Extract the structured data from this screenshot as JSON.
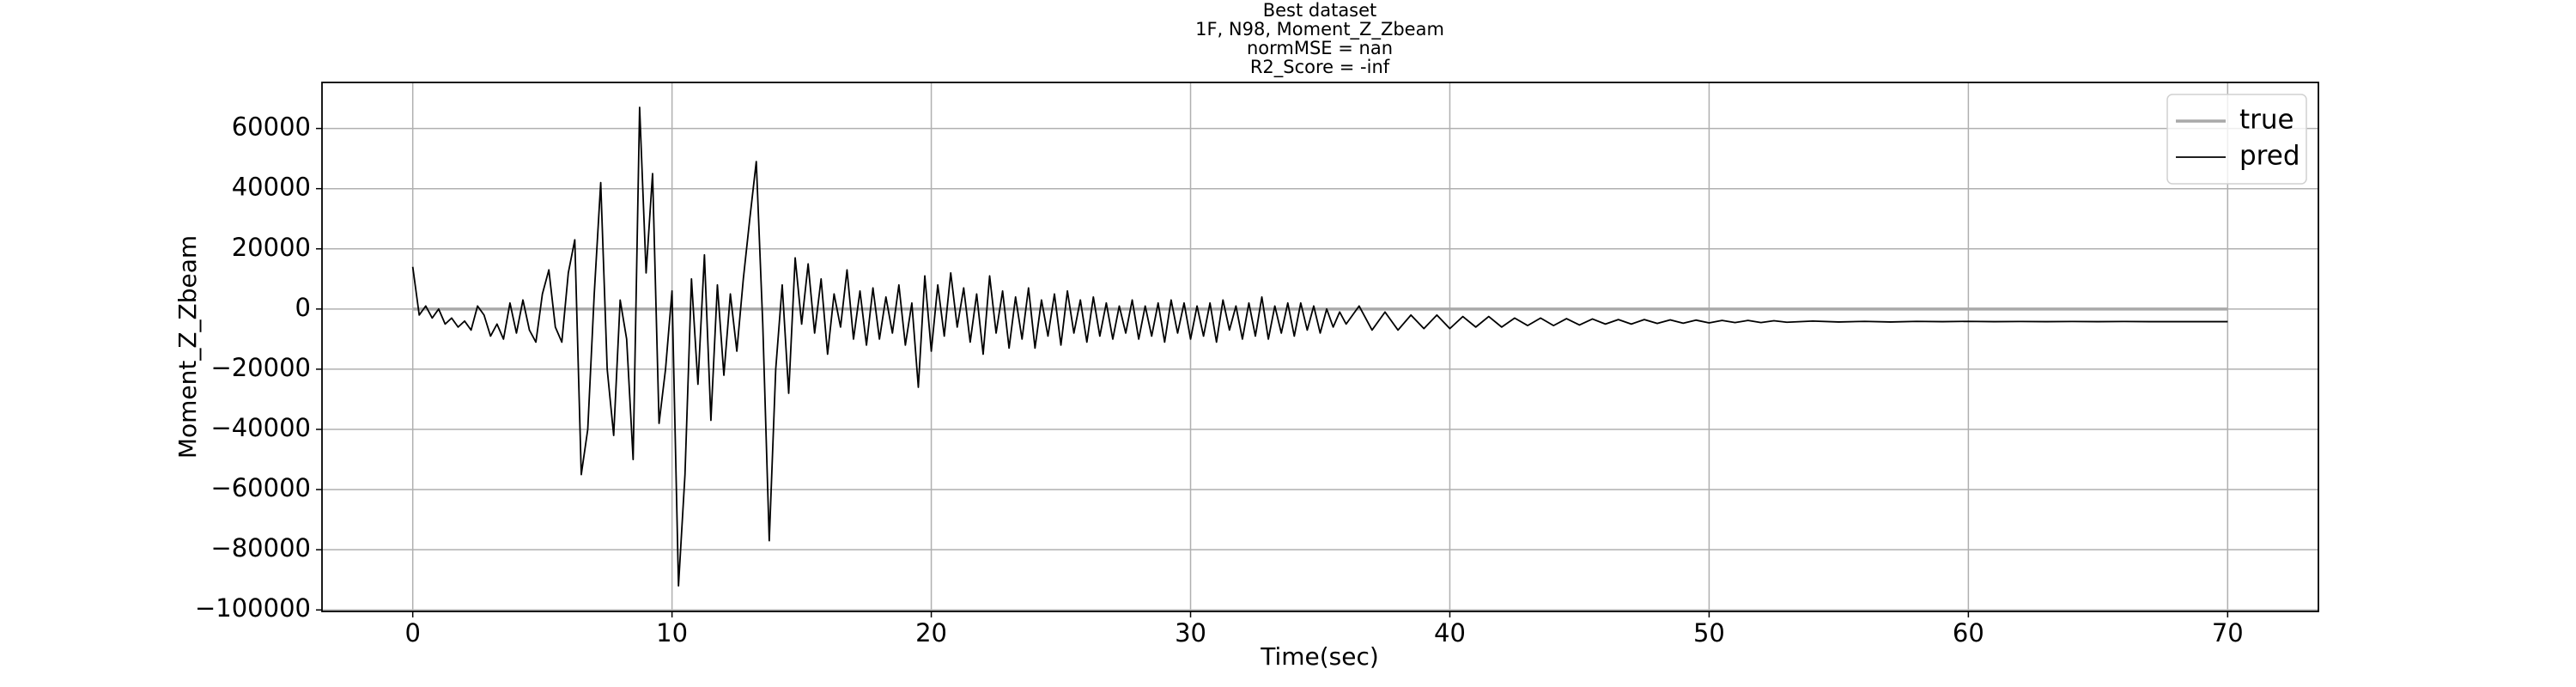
{
  "chart_data": {
    "type": "line",
    "title_lines": [
      "Best dataset",
      "1F, N98, Moment_Z_Zbeam",
      "normMSE = nan",
      "R2_Score = -inf"
    ],
    "xlabel": "Time(sec)",
    "ylabel": "Moment_Z_Zbeam",
    "xlim": [
      -3.5,
      73.5
    ],
    "ylim": [
      -100500,
      75300
    ],
    "xticks": [
      0,
      10,
      20,
      30,
      40,
      50,
      60,
      70
    ],
    "yticks": [
      {
        "value": -100000,
        "label": "−100000"
      },
      {
        "value": -80000,
        "label": "−80000"
      },
      {
        "value": -60000,
        "label": "−60000"
      },
      {
        "value": -40000,
        "label": "−40000"
      },
      {
        "value": -20000,
        "label": "−20000"
      },
      0,
      20000,
      40000,
      60000
    ],
    "grid": true,
    "legend": "upper right",
    "series": [
      {
        "name": "true",
        "color": "#a9a9a9",
        "x": [
          0,
          70
        ],
        "values": [
          0,
          0
        ]
      },
      {
        "name": "pred",
        "color": "#000000",
        "x": [
          0,
          0.25,
          0.5,
          0.75,
          1,
          1.25,
          1.5,
          1.75,
          2,
          2.25,
          2.5,
          2.75,
          3,
          3.25,
          3.5,
          3.75,
          4,
          4.25,
          4.5,
          4.75,
          5,
          5.25,
          5.5,
          5.75,
          6,
          6.25,
          6.5,
          6.75,
          7,
          7.25,
          7.5,
          7.75,
          8,
          8.25,
          8.5,
          8.75,
          9,
          9.25,
          9.5,
          9.75,
          10,
          10.25,
          10.5,
          10.75,
          11,
          11.25,
          11.5,
          11.75,
          12,
          12.25,
          12.5,
          12.75,
          13,
          13.25,
          13.5,
          13.75,
          14,
          14.25,
          14.5,
          14.75,
          15,
          15.25,
          15.5,
          15.75,
          16,
          16.25,
          16.5,
          16.75,
          17,
          17.25,
          17.5,
          17.75,
          18,
          18.25,
          18.5,
          18.75,
          19,
          19.25,
          19.5,
          19.75,
          20,
          20.25,
          20.5,
          20.75,
          21,
          21.25,
          21.5,
          21.75,
          22,
          22.25,
          22.5,
          22.75,
          23,
          23.25,
          23.5,
          23.75,
          24,
          24.25,
          24.5,
          24.75,
          25,
          25.25,
          25.5,
          25.75,
          26,
          26.25,
          26.5,
          26.75,
          27,
          27.25,
          27.5,
          27.75,
          28,
          28.25,
          28.5,
          28.75,
          29,
          29.25,
          29.5,
          29.75,
          30,
          30.25,
          30.5,
          30.75,
          31,
          31.25,
          31.5,
          31.75,
          32,
          32.25,
          32.5,
          32.75,
          33,
          33.25,
          33.5,
          33.75,
          34,
          34.25,
          34.5,
          34.75,
          35,
          35.25,
          35.5,
          35.75,
          36,
          36.5,
          37,
          37.5,
          38,
          38.5,
          39,
          39.5,
          40,
          40.5,
          41,
          41.5,
          42,
          42.5,
          43,
          43.5,
          44,
          44.5,
          45,
          45.5,
          46,
          46.5,
          47,
          47.5,
          48,
          48.5,
          49,
          49.5,
          50,
          50.5,
          51,
          51.5,
          52,
          52.5,
          53,
          54,
          55,
          56,
          57,
          58,
          59,
          60,
          61,
          62,
          63,
          64,
          65,
          66,
          67,
          68,
          69,
          70
        ],
        "values": [
          14000,
          -2000,
          1000,
          -3000,
          0,
          -5000,
          -3000,
          -6000,
          -4000,
          -7000,
          1000,
          -2000,
          -9000,
          -5000,
          -10000,
          2000,
          -8000,
          3000,
          -7000,
          -11000,
          5000,
          13000,
          -6000,
          -11000,
          12000,
          23000,
          -55000,
          -40000,
          5000,
          42000,
          -20000,
          -42000,
          3000,
          -10000,
          -50000,
          67000,
          12000,
          45000,
          -38000,
          -20000,
          6000,
          -92000,
          -55000,
          10000,
          -25000,
          18000,
          -37000,
          8000,
          -22000,
          5000,
          -14000,
          10000,
          30000,
          49000,
          -5000,
          -77000,
          -20000,
          8000,
          -28000,
          17000,
          -5000,
          15000,
          -8000,
          10000,
          -15000,
          5000,
          -6000,
          13000,
          -10000,
          6000,
          -12000,
          7000,
          -10000,
          4000,
          -8000,
          8000,
          -12000,
          2000,
          -26000,
          11000,
          -14000,
          8000,
          -9000,
          12000,
          -6000,
          7000,
          -11000,
          5000,
          -15000,
          11000,
          -8000,
          6000,
          -13000,
          4000,
          -10000,
          7000,
          -13000,
          3000,
          -9000,
          5000,
          -12000,
          6000,
          -8000,
          3000,
          -11000,
          4000,
          -9000,
          2000,
          -10000,
          1000,
          -8000,
          3000,
          -10000,
          1000,
          -9000,
          2000,
          -11000,
          3000,
          -8000,
          2000,
          -10000,
          1000,
          -9000,
          2000,
          -11000,
          3000,
          -7000,
          1000,
          -10000,
          2000,
          -9000,
          4000,
          -10000,
          1000,
          -8000,
          2000,
          -9000,
          2000,
          -7000,
          1000,
          -8000,
          0,
          -6000,
          -1000,
          -5000,
          1000,
          -7000,
          -1000,
          -7000,
          -2000,
          -6500,
          -2000,
          -6500,
          -2500,
          -6000,
          -2500,
          -6000,
          -3000,
          -5500,
          -3000,
          -5500,
          -3200,
          -5300,
          -3300,
          -5000,
          -3500,
          -5000,
          -3500,
          -4800,
          -3600,
          -4700,
          -3700,
          -4600,
          -3800,
          -4500,
          -3800,
          -4500,
          -3900,
          -4400,
          -4000,
          -4300,
          -4100,
          -4300,
          -4100,
          -4200,
          -4100,
          -4200,
          -4150,
          -4200,
          -4150,
          -4200,
          -4150,
          -4200,
          -4200,
          -4200,
          -4200
        ]
      }
    ]
  }
}
